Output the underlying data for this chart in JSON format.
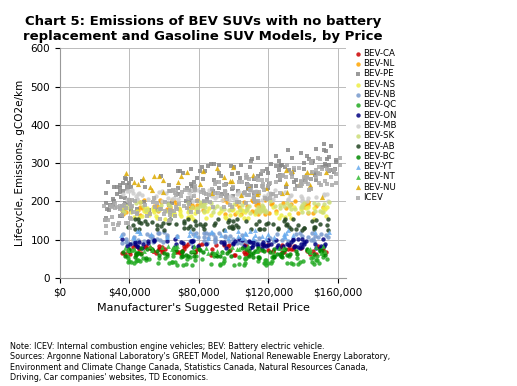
{
  "title": "Chart 5: Emissions of BEV SUVs with no battery\nreplacement and Gasoline SUV Models, by Price",
  "xlabel": "Manufacturer's Suggested Retail Price",
  "ylabel": "Lifecycle, Emissions, gCO2e/km",
  "xlim": [
    0,
    165000
  ],
  "ylim": [
    0,
    600
  ],
  "xticks": [
    0,
    40000,
    80000,
    120000,
    160000
  ],
  "xtick_labels": [
    "$0",
    "$40,000",
    "$80,000",
    "$120,000",
    "$160,000"
  ],
  "yticks": [
    0,
    100,
    200,
    300,
    400,
    500,
    600
  ],
  "note": "Note: ICEV: Internal combustion engine vehicles; BEV: Battery electric vehicle.\nSources: Argonne National Laboratory's GREET Model, National Renewable Energy Laboratory,\nEnvironment and Climate Change Canada, Statistics Canada, Natural Resources Canada,\nDriving, Car companies' websites, TD Economics.",
  "series": [
    {
      "label": "BEV-CA",
      "color": "#cc0000",
      "marker": "o",
      "ms": 10,
      "base_price_min": 35000,
      "base_price_max": 155000,
      "n": 80,
      "emit_base": 75,
      "emit_range": 30,
      "price_emit_slope": 0.0
    },
    {
      "label": "BEV-NL",
      "color": "#ffa500",
      "marker": "o",
      "ms": 10,
      "base_price_min": 35000,
      "base_price_max": 155000,
      "n": 80,
      "emit_base": 185,
      "emit_range": 40,
      "price_emit_slope": 0.0
    },
    {
      "label": "BEV-PE",
      "color": "#888888",
      "marker": "s",
      "ms": 12,
      "base_price_min": 25000,
      "base_price_max": 160000,
      "n": 160,
      "emit_base": 200,
      "emit_range": 100,
      "price_emit_slope": 0.0008
    },
    {
      "label": "BEV-NS",
      "color": "#eeee44",
      "marker": "o",
      "ms": 10,
      "base_price_min": 35000,
      "base_price_max": 155000,
      "n": 80,
      "emit_base": 170,
      "emit_range": 35,
      "price_emit_slope": 0.0
    },
    {
      "label": "BEV-NB",
      "color": "#7799cc",
      "marker": "o",
      "ms": 10,
      "base_price_min": 35000,
      "base_price_max": 155000,
      "n": 80,
      "emit_base": 105,
      "emit_range": 30,
      "price_emit_slope": 0.0
    },
    {
      "label": "BEV-QC",
      "color": "#22aa22",
      "marker": "o",
      "ms": 10,
      "base_price_min": 35000,
      "base_price_max": 155000,
      "n": 80,
      "emit_base": 45,
      "emit_range": 25,
      "price_emit_slope": 0.0
    },
    {
      "label": "BEV-ON",
      "color": "#000080",
      "marker": "o",
      "ms": 10,
      "base_price_min": 35000,
      "base_price_max": 155000,
      "n": 80,
      "emit_base": 90,
      "emit_range": 25,
      "price_emit_slope": 0.0
    },
    {
      "label": "BEV-MB",
      "color": "#cccccc",
      "marker": "o",
      "ms": 10,
      "base_price_min": 35000,
      "base_price_max": 155000,
      "n": 80,
      "emit_base": 215,
      "emit_range": 30,
      "price_emit_slope": 0.0
    },
    {
      "label": "BEV-SK",
      "color": "#ccdd77",
      "marker": "o",
      "ms": 10,
      "base_price_min": 35000,
      "base_price_max": 155000,
      "n": 80,
      "emit_base": 185,
      "emit_range": 30,
      "price_emit_slope": 0.0
    },
    {
      "label": "BEV-AB",
      "color": "#224422",
      "marker": "o",
      "ms": 10,
      "base_price_min": 35000,
      "base_price_max": 155000,
      "n": 80,
      "emit_base": 140,
      "emit_range": 30,
      "price_emit_slope": 0.0
    },
    {
      "label": "BEV-BC",
      "color": "#008800",
      "marker": "o",
      "ms": 10,
      "base_price_min": 35000,
      "base_price_max": 155000,
      "n": 80,
      "emit_base": 65,
      "emit_range": 25,
      "price_emit_slope": 0.0
    },
    {
      "label": "BEV-YT",
      "color": "#66aaee",
      "marker": "^",
      "ms": 12,
      "base_price_min": 35000,
      "base_price_max": 155000,
      "n": 40,
      "emit_base": 115,
      "emit_range": 25,
      "price_emit_slope": 0.0
    },
    {
      "label": "BEV-NT",
      "color": "#33bb33",
      "marker": "^",
      "ms": 12,
      "base_price_min": 35000,
      "base_price_max": 155000,
      "n": 40,
      "emit_base": 75,
      "emit_range": 20,
      "price_emit_slope": 0.0
    },
    {
      "label": "BEV-NU",
      "color": "#ddaa00",
      "marker": "^",
      "ms": 14,
      "base_price_min": 35000,
      "base_price_max": 155000,
      "n": 40,
      "emit_base": 250,
      "emit_range": 80,
      "price_emit_slope": 0.0
    },
    {
      "label": "ICEV",
      "color": "#aaaaaa",
      "marker": "s",
      "ms": 12,
      "base_price_min": 25000,
      "base_price_max": 162000,
      "n": 200,
      "emit_base": 150,
      "emit_range": 80,
      "price_emit_slope": 0.001
    }
  ]
}
